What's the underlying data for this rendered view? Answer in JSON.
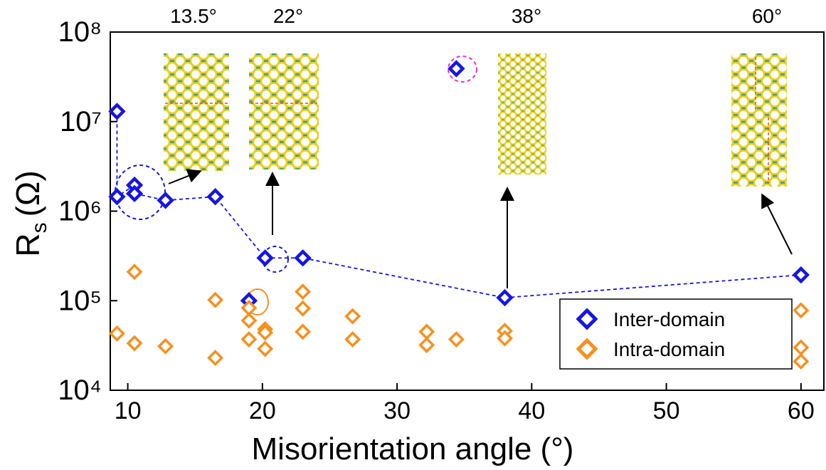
{
  "chart_data": {
    "type": "scatter",
    "xlabel": "Misorientation angle (°)",
    "ylabel": {
      "main": "R",
      "sub": "s",
      "unit": "(Ω)"
    },
    "xlim": [
      8.7,
      61.7
    ],
    "xticks": [
      10,
      20,
      30,
      40,
      50,
      60
    ],
    "ylim": [
      10000,
      100000000
    ],
    "log_y": true,
    "yticks": [
      {
        "value": 10000,
        "label": "10⁴"
      },
      {
        "value": 100000,
        "label": "10⁵"
      },
      {
        "value": 1000000,
        "label": "10⁶"
      },
      {
        "value": 10000000,
        "label": "10⁷"
      },
      {
        "value": 100000000,
        "label": "10⁸"
      }
    ],
    "legend": "lower right",
    "annotations": [
      "13.5°",
      "22°",
      "38°",
      "60°"
    ],
    "series": [
      {
        "name": "Inter-domain",
        "color": "#1515e6",
        "line_style": "dashed",
        "x": [
          9.2,
          9.2,
          10.5,
          10.5,
          12.8,
          16.5,
          20.2,
          23,
          38,
          60,
          null,
          19,
          null,
          34.4
        ],
        "values": [
          13000000,
          1450000,
          1950000,
          1570000,
          1320000,
          1450000,
          300000,
          300000,
          108000,
          194000,
          null,
          100000,
          null,
          39000000
        ]
      },
      {
        "name": "Intra-domain",
        "color": "#f7901e",
        "x": [
          9.2,
          10.5,
          10.5,
          12.8,
          16.5,
          16.5,
          19,
          19,
          19,
          20.2,
          20.2,
          20.2,
          23,
          23,
          23,
          26.7,
          26.7,
          32.2,
          32.2,
          34.4,
          38,
          38,
          60,
          60,
          60
        ],
        "values": [
          43000,
          210000,
          33500,
          31000,
          102000,
          23000,
          83000,
          60000,
          37000,
          48000,
          44000,
          29000,
          126000,
          82000,
          45000,
          67000,
          37000,
          45000,
          32000,
          37000,
          46000,
          38000,
          78000,
          30000,
          21000
        ]
      }
    ]
  }
}
